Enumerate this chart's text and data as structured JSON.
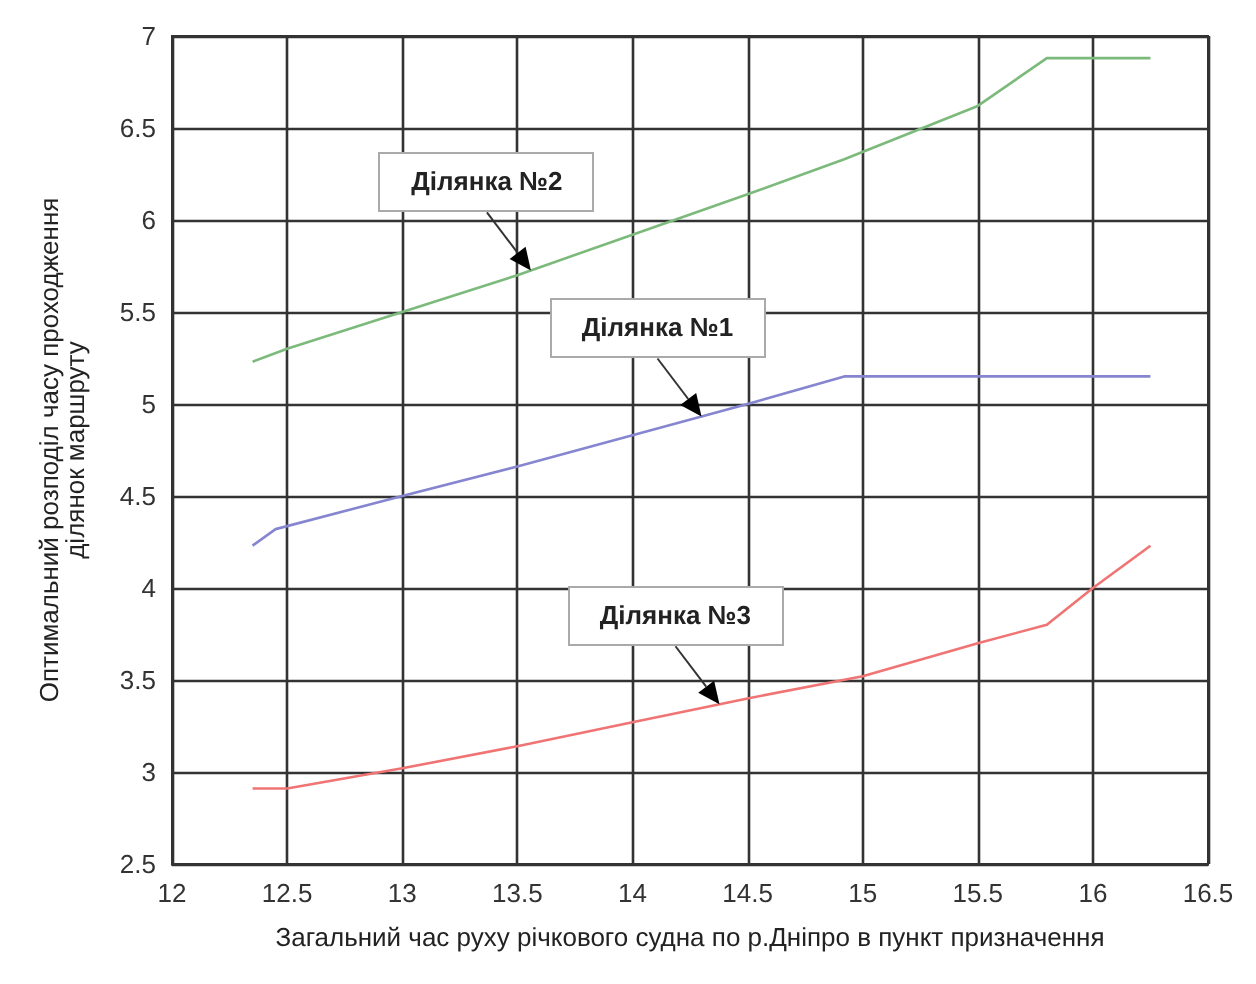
{
  "chart_data": {
    "type": "line",
    "xlabel": "Загальний час руху річкового судна по р.Дніпро в пункт призначення",
    "ylabel": "Оптимальний розподіл часу проходження\nділянок маршруту",
    "xlim": [
      12,
      16.5
    ],
    "xticks": [
      12,
      12.5,
      13,
      13.5,
      14,
      14.5,
      15,
      15.5,
      16,
      16.5
    ],
    "ylim": [
      2.5,
      7
    ],
    "yticks": [
      2.5,
      3,
      3.5,
      4,
      4.5,
      5,
      5.5,
      6,
      6.5,
      7
    ],
    "grid": true,
    "legend": false,
    "marker": "none",
    "line_style": "solid",
    "series": [
      {
        "name": "Ділянка №2",
        "color": "#7cba7c",
        "x": [
          12.35,
          12.5,
          13,
          13.5,
          14,
          14.5,
          14.92,
          15.5,
          15.8,
          16.25
        ],
        "values": [
          5.23,
          5.3,
          5.5,
          5.7,
          5.92,
          6.14,
          6.33,
          6.62,
          6.88,
          6.88
        ]
      },
      {
        "name": "Ділянка №1",
        "color": "#8585d0",
        "x": [
          12.35,
          12.45,
          13,
          13.5,
          14,
          14.5,
          14.92,
          16.25
        ],
        "values": [
          4.23,
          4.32,
          4.5,
          4.66,
          4.83,
          5.0,
          5.15,
          5.15
        ]
      },
      {
        "name": "Ділянка №3",
        "color": "#f07474",
        "x": [
          12.35,
          12.5,
          13,
          13.5,
          14,
          14.5,
          15,
          15.5,
          15.8,
          16,
          16.25
        ],
        "values": [
          2.91,
          2.91,
          3.02,
          3.14,
          3.27,
          3.4,
          3.52,
          3.7,
          3.8,
          4.0,
          4.23
        ]
      }
    ]
  }
}
